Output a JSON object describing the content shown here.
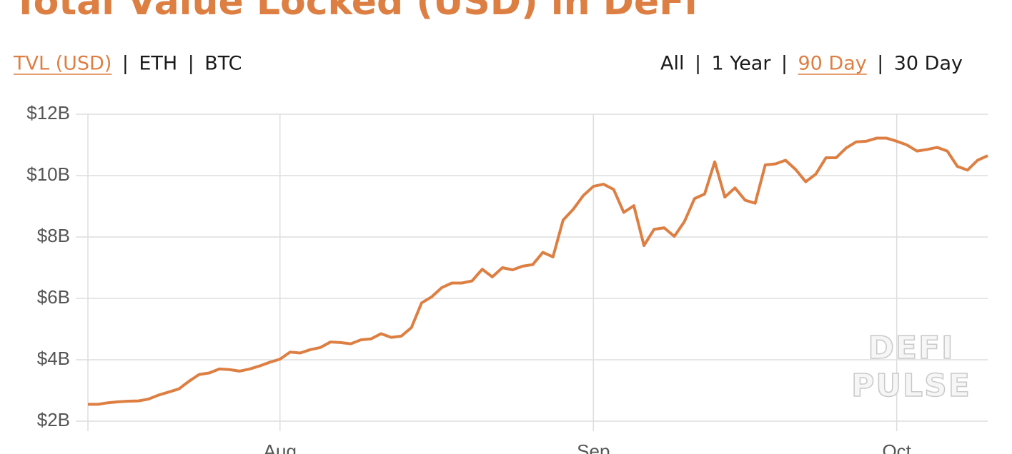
{
  "chart_data": {
    "type": "line",
    "title": "Total Value Locked (USD) in DeFi",
    "metric_tabs": [
      "TVL (USD)",
      "ETH",
      "BTC"
    ],
    "active_metric_tab": 0,
    "range_tabs": [
      "All",
      "1 Year",
      "90 Day",
      "30 Day"
    ],
    "active_range_tab": 2,
    "watermark": [
      "DEFI",
      "PULSE"
    ],
    "color": "#dd7f43",
    "grid": true,
    "categories": [
      null,
      null,
      null,
      null,
      null,
      null,
      null,
      null,
      null,
      null,
      null,
      null,
      null,
      null,
      null,
      null,
      null,
      null,
      null,
      "Aug",
      null,
      null,
      null,
      null,
      null,
      null,
      null,
      null,
      null,
      null,
      null,
      null,
      null,
      null,
      null,
      null,
      null,
      null,
      null,
      null,
      null,
      null,
      null,
      null,
      null,
      null,
      null,
      null,
      null,
      null,
      "Sep",
      null,
      null,
      null,
      null,
      null,
      null,
      null,
      null,
      null,
      null,
      null,
      null,
      null,
      null,
      null,
      null,
      null,
      null,
      null,
      null,
      null,
      null,
      null,
      null,
      null,
      null,
      null,
      null,
      null,
      "Oct",
      null,
      null,
      null,
      null,
      null,
      null,
      null,
      null,
      null
    ],
    "values": [
      2.55,
      2.55,
      2.6,
      2.63,
      2.65,
      2.66,
      2.72,
      2.85,
      2.95,
      3.05,
      3.3,
      3.52,
      3.57,
      3.7,
      3.68,
      3.63,
      3.7,
      3.8,
      3.92,
      4.02,
      4.25,
      4.22,
      4.33,
      4.4,
      4.58,
      4.56,
      4.52,
      4.65,
      4.68,
      4.85,
      4.73,
      4.77,
      5.05,
      5.85,
      6.05,
      6.35,
      6.5,
      6.5,
      6.57,
      6.95,
      6.7,
      7.0,
      6.93,
      7.05,
      7.1,
      7.5,
      7.35,
      8.55,
      8.9,
      9.35,
      9.65,
      9.72,
      9.55,
      8.8,
      9.02,
      7.72,
      8.25,
      8.3,
      8.02,
      8.5,
      9.25,
      9.4,
      10.45,
      9.3,
      9.6,
      9.2,
      9.1,
      10.35,
      10.38,
      10.5,
      10.2,
      9.8,
      10.05,
      10.58,
      10.58,
      10.9,
      11.1,
      11.12,
      11.22,
      11.22,
      11.12,
      11.0,
      10.8,
      10.85,
      10.92,
      10.8,
      10.3,
      10.18,
      10.5,
      10.65
    ],
    "ylim": [
      2,
      12
    ],
    "yticks": [
      {
        "value": 2,
        "label": "$2B"
      },
      {
        "value": 4,
        "label": "$4B"
      },
      {
        "value": 6,
        "label": "$6B"
      },
      {
        "value": 8,
        "label": "$8B"
      },
      {
        "value": 10,
        "label": "$10B"
      },
      {
        "value": 12,
        "label": "$12B"
      }
    ]
  }
}
